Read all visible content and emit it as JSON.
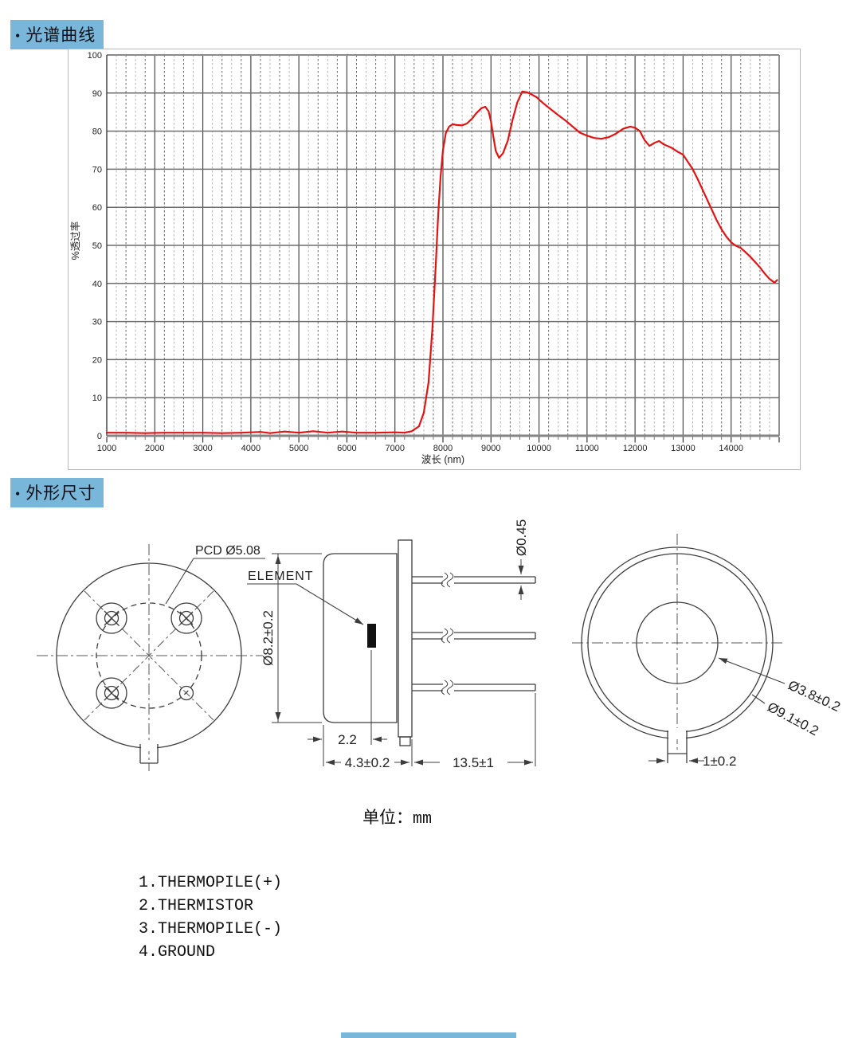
{
  "accent_color": "#78b6da",
  "sections": {
    "spectral": {
      "bullet": "•",
      "title": "光谱曲线"
    },
    "outline": {
      "bullet": "•",
      "title": "外形尺寸"
    }
  },
  "chart_data": {
    "type": "line",
    "title": "",
    "xlabel": "波长 (nm)",
    "ylabel": "%透过率",
    "xlim": [
      1000,
      15000
    ],
    "ylim": [
      0,
      100
    ],
    "xticks": [
      1000,
      2000,
      3000,
      4000,
      5000,
      6000,
      7000,
      8000,
      9000,
      10000,
      11000,
      12000,
      13000,
      14000
    ],
    "x_minor_step": 200,
    "ytick_step": 10,
    "grid": "major solid both axes, minor dashed vertical",
    "legend": "none",
    "line_color": "#e11414",
    "series": [
      {
        "name": "transmittance",
        "points": [
          [
            1000,
            0.8
          ],
          [
            1400,
            0.8
          ],
          [
            1800,
            0.7
          ],
          [
            2200,
            0.8
          ],
          [
            2600,
            0.8
          ],
          [
            3000,
            0.8
          ],
          [
            3400,
            0.7
          ],
          [
            3800,
            0.8
          ],
          [
            4200,
            1.0
          ],
          [
            4400,
            0.7
          ],
          [
            4700,
            1.1
          ],
          [
            5000,
            0.8
          ],
          [
            5300,
            1.2
          ],
          [
            5600,
            0.8
          ],
          [
            5900,
            1.1
          ],
          [
            6200,
            0.8
          ],
          [
            6600,
            0.8
          ],
          [
            7000,
            0.9
          ],
          [
            7200,
            0.8
          ],
          [
            7350,
            1.2
          ],
          [
            7500,
            2.5
          ],
          [
            7600,
            6
          ],
          [
            7700,
            14
          ],
          [
            7780,
            28
          ],
          [
            7850,
            45
          ],
          [
            7900,
            58
          ],
          [
            7950,
            68
          ],
          [
            8000,
            75
          ],
          [
            8060,
            79.5
          ],
          [
            8130,
            81.2
          ],
          [
            8200,
            81.8
          ],
          [
            8300,
            81.6
          ],
          [
            8400,
            81.5
          ],
          [
            8500,
            82
          ],
          [
            8600,
            83.2
          ],
          [
            8700,
            84.8
          ],
          [
            8800,
            86
          ],
          [
            8880,
            86.4
          ],
          [
            8950,
            85.2
          ],
          [
            9000,
            82.5
          ],
          [
            9050,
            78.5
          ],
          [
            9100,
            74.8
          ],
          [
            9170,
            73
          ],
          [
            9250,
            74.2
          ],
          [
            9350,
            77.5
          ],
          [
            9450,
            83
          ],
          [
            9550,
            87.6
          ],
          [
            9650,
            90.4
          ],
          [
            9750,
            90.2
          ],
          [
            9850,
            89.6
          ],
          [
            9950,
            88.9
          ],
          [
            10100,
            87.2
          ],
          [
            10250,
            85.7
          ],
          [
            10400,
            84.2
          ],
          [
            10550,
            82.8
          ],
          [
            10700,
            81.2
          ],
          [
            10850,
            79.6
          ],
          [
            11000,
            78.8
          ],
          [
            11150,
            78.2
          ],
          [
            11300,
            78.0
          ],
          [
            11450,
            78.4
          ],
          [
            11600,
            79.3
          ],
          [
            11750,
            80.6
          ],
          [
            11900,
            81.2
          ],
          [
            12000,
            80.9
          ],
          [
            12100,
            80.0
          ],
          [
            12200,
            77.6
          ],
          [
            12300,
            76.1
          ],
          [
            12400,
            76.9
          ],
          [
            12500,
            77.4
          ],
          [
            12600,
            76.5
          ],
          [
            12750,
            75.7
          ],
          [
            12900,
            74.5
          ],
          [
            13000,
            73.8
          ],
          [
            13100,
            71.9
          ],
          [
            13200,
            70
          ],
          [
            13300,
            67.5
          ],
          [
            13400,
            64.8
          ],
          [
            13500,
            62
          ],
          [
            13600,
            59.3
          ],
          [
            13700,
            56.6
          ],
          [
            13800,
            54.2
          ],
          [
            13900,
            52.3
          ],
          [
            14000,
            50.8
          ],
          [
            14100,
            49.9
          ],
          [
            14200,
            49.3
          ],
          [
            14300,
            48.2
          ],
          [
            14400,
            47
          ],
          [
            14500,
            45.6
          ],
          [
            14600,
            44.2
          ],
          [
            14700,
            42.6
          ],
          [
            14800,
            41.2
          ],
          [
            14900,
            40.2
          ],
          [
            14960,
            40.9
          ]
        ]
      }
    ]
  },
  "drawing": {
    "unit_label": "单位：",
    "unit_value": "mm",
    "labels": {
      "pcd": "PCD Ø5.08",
      "element": "ELEMENT",
      "body_dia": "Ø8.2±0.2",
      "element_offset": "2.2",
      "body_len": "4.3±0.2",
      "lead_len": "13.5±1",
      "lead_dia": "Ø0.45",
      "window_dia": "Ø3.8±0.2",
      "cap_dia": "Ø9.1±0.2",
      "tab_width": "1±0.2"
    }
  },
  "pin_functions": {
    "items": [
      "1.THERMOPILE(+)",
      "2.THERMISTOR",
      "3.THERMOPILE(-)",
      "4.GROUND"
    ]
  }
}
